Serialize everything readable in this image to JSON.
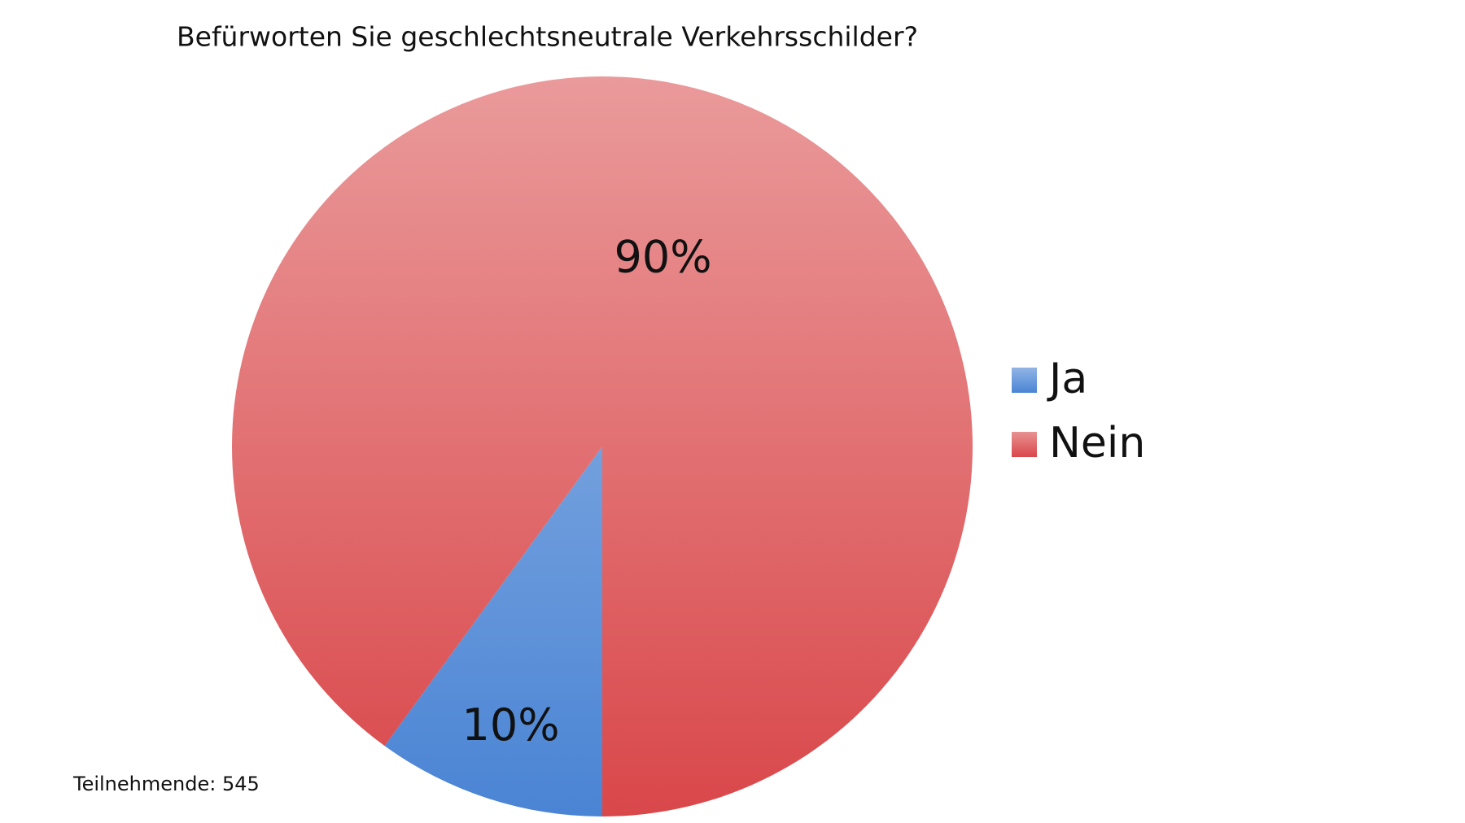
{
  "chart_data": {
    "type": "pie",
    "title": "Befürworten Sie geschlechtsneutrale Verkehrsschilder?",
    "categories": [
      "Ja",
      "Nein"
    ],
    "values": [
      10,
      90
    ],
    "value_labels": [
      "10%",
      "90%"
    ],
    "colors": [
      "#4a84d4",
      "#d9474a"
    ],
    "legend": "right",
    "footnote": "Teilnehmende: 545"
  }
}
